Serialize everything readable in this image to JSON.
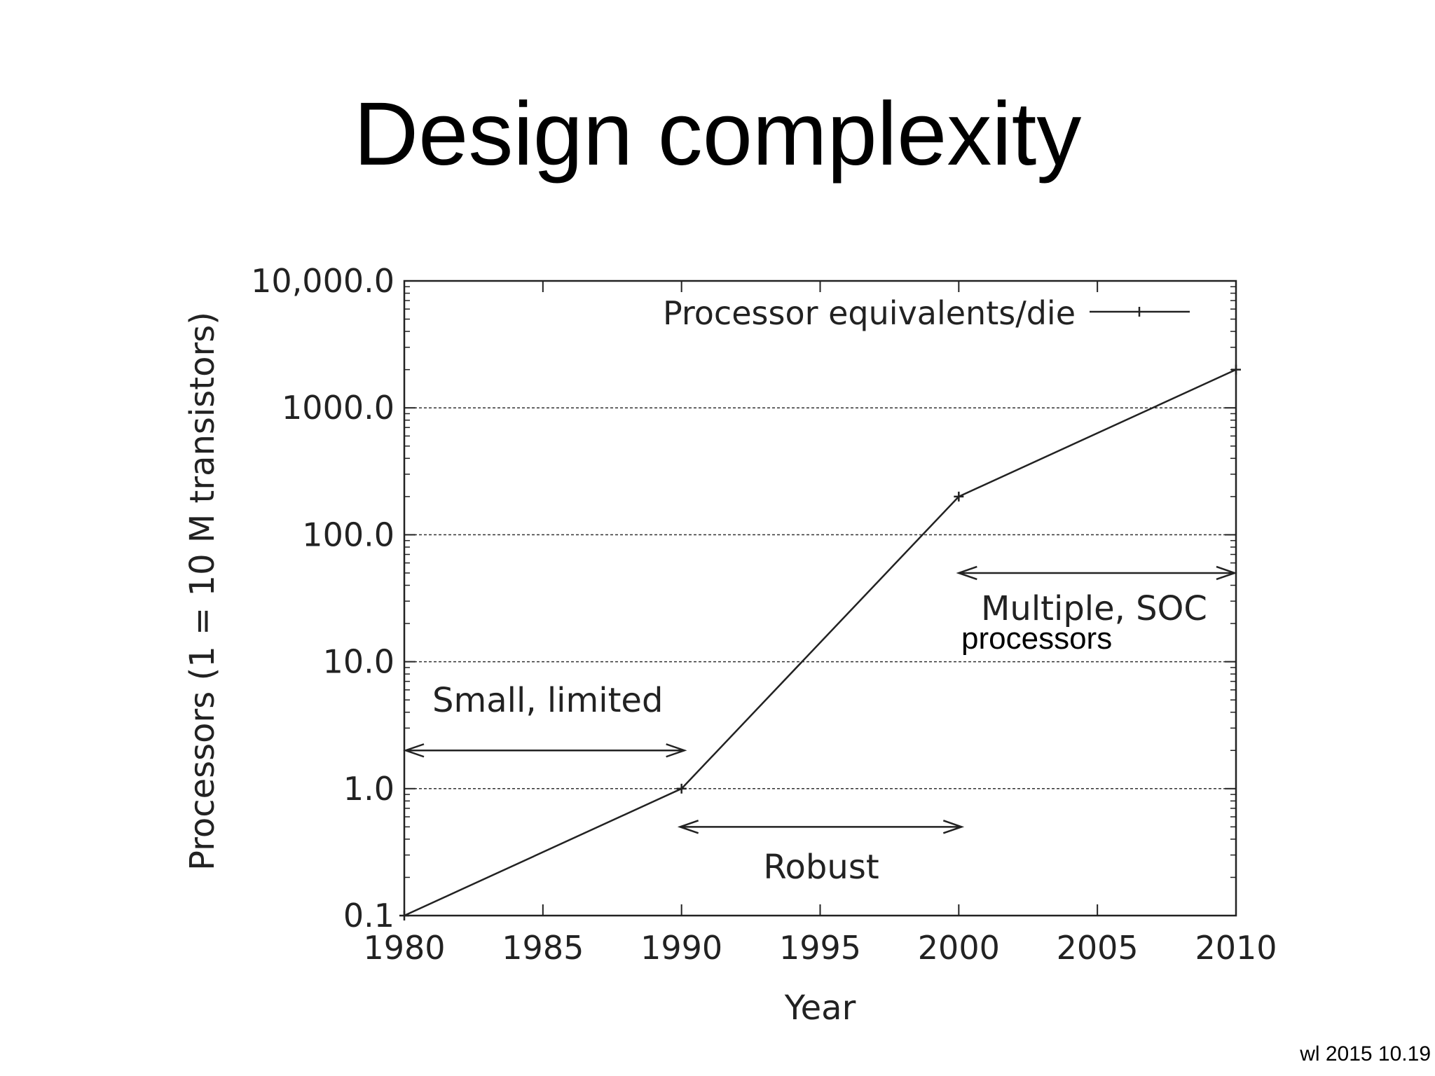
{
  "slide": {
    "title": "Design complexity",
    "footer": "wl 2015 10.19"
  },
  "chart_data": {
    "type": "line",
    "title": "",
    "xlabel": "Year",
    "ylabel": "Processors (1 = 10 M transistors)",
    "xlim": [
      1980,
      2010
    ],
    "ylim": [
      0.1,
      10000
    ],
    "yscale": "log",
    "grid": "horizontal dashed at 1, 10, 100, 1000",
    "legend_position": "top-right",
    "x_ticks": [
      "1980",
      "1985",
      "1990",
      "1995",
      "2000",
      "2005",
      "2010"
    ],
    "y_ticks": [
      "0.1",
      "1.0",
      "10.0",
      "100.0",
      "1000.0",
      "10,000.0"
    ],
    "series": [
      {
        "name": "Processor equivalents/die",
        "x": [
          1980,
          1990,
          2000,
          2010
        ],
        "y": [
          0.1,
          1,
          200,
          2000
        ]
      }
    ],
    "annotations": [
      {
        "text": "Small, limited",
        "arrow_from": 1980,
        "arrow_to": 1990,
        "arrow_y": 2.0
      },
      {
        "text": "Robust",
        "arrow_from": 1990,
        "arrow_to": 2000,
        "arrow_y": 0.5
      },
      {
        "text": "Multiple, SOC",
        "subtext": "processors",
        "arrow_from": 2000,
        "arrow_to": 2010,
        "arrow_y": 50
      }
    ]
  }
}
